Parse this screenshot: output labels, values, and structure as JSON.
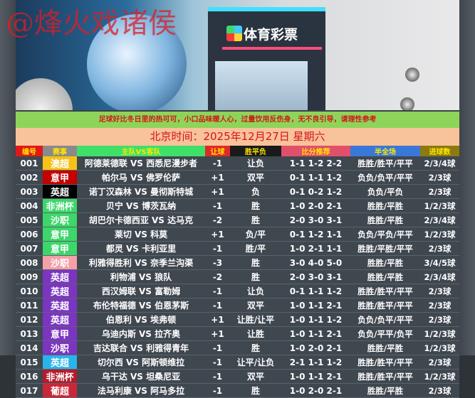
{
  "banner": {
    "watermark": "@烽火戏诸侯",
    "store_sign": "体育彩票"
  },
  "notice": "足球好比冬日里的热可可，小口品味暖人心，过量饮用反伤身，无不良引导，请理性参考",
  "date": "北京时间：2025年12月27日  星期六",
  "headers": [
    {
      "label": "编号",
      "bg": "#e01818"
    },
    {
      "label": "赛事",
      "bg": "#8a8a8a"
    },
    {
      "label": "主队VS客队",
      "bg": "#3fe06a"
    },
    {
      "label": "让球",
      "bg": "#e02828"
    },
    {
      "label": "胜平负",
      "bg": "#1a1a1a"
    },
    {
      "label": "比分推荐",
      "bg": "#e0506a"
    },
    {
      "label": "半全场",
      "bg": "#3a78d8"
    },
    {
      "label": "进球数",
      "bg": "#8a7a10"
    }
  ],
  "rows": [
    {
      "id": "001",
      "league": "澳超",
      "league_color": "#f5c21a",
      "match": "阿德莱德联 VS 西悉尼漫步者",
      "handicap": "-1",
      "result": "让负",
      "scores": "1-1 1-2 2-2",
      "halffull": "胜胜/胜平/平平",
      "goals": "2/3/4球"
    },
    {
      "id": "002",
      "league": "意甲",
      "league_color": "#c40000",
      "match": "帕尔马 VS 佛罗伦萨",
      "handicap": "+1",
      "result": "双平",
      "scores": "0-1 1-1 1-2",
      "halffull": "负负/负平/平平",
      "goals": "2/3球"
    },
    {
      "id": "003",
      "league": "英超",
      "league_color": "#000000",
      "match": "诺丁汉森林 VS 曼彻斯特城",
      "handicap": "+1",
      "result": "负",
      "scores": "0-1 0-2 1-2",
      "halffull": "负负/平负",
      "goals": "2/3球"
    },
    {
      "id": "004",
      "league": "非洲杯",
      "league_color": "#3dd66a",
      "match": "贝宁 VS 博茨瓦纳",
      "handicap": "-1",
      "result": "胜",
      "scores": "1-0 2-0 2-1",
      "halffull": "胜胜/平胜",
      "goals": "1/2/3球"
    },
    {
      "id": "005",
      "league": "沙职",
      "league_color": "#3dd66a",
      "match": "胡巴尔卡德西亚 VS 达马克",
      "handicap": "-2",
      "result": "胜",
      "scores": "2-0 3-0 3-1",
      "halffull": "胜胜/平胜",
      "goals": "2/3/4球"
    },
    {
      "id": "006",
      "league": "意甲",
      "league_color": "#3dd66a",
      "match": "莱切 VS 科莫",
      "handicap": "+1",
      "result": "负/平",
      "scores": "0-1 1-2 1-1",
      "halffull": "负负/平负/平平",
      "goals": "1/2/3球"
    },
    {
      "id": "007",
      "league": "意甲",
      "league_color": "#3dd66a",
      "match": "都灵 VS 卡利亚里",
      "handicap": "-1",
      "result": "胜/平",
      "scores": "1-0 2-1 1-1",
      "halffull": "胜胜/平胜/平平",
      "goals": "2/3球"
    },
    {
      "id": "008",
      "league": "沙职",
      "league_color": "#f4a0a8",
      "match": "利雅得胜利 VS 奈季兰沟渠",
      "handicap": "-3",
      "result": "胜",
      "scores": "3-0 4-0 5-0",
      "halffull": "胜胜/平胜",
      "goals": "3/4/5球"
    },
    {
      "id": "009",
      "league": "英超",
      "league_color": "#7b35c0",
      "match": "利物浦 VS 狼队",
      "handicap": "-2",
      "result": "胜",
      "scores": "2-0 3-0 3-1",
      "halffull": "胜胜/平胜",
      "goals": "2/3/4球"
    },
    {
      "id": "010",
      "league": "英超",
      "league_color": "#7b35c0",
      "match": "西汉姆联 VS 富勒姆",
      "handicap": "-1",
      "result": "让负",
      "scores": "0-1 1-1 1-2",
      "halffull": "胜胜/胜平/平平",
      "goals": "2/3球"
    },
    {
      "id": "011",
      "league": "英超",
      "league_color": "#7b35c0",
      "match": "布伦特福德 VS 伯恩茅斯",
      "handicap": "-1",
      "result": "双平",
      "scores": "1-0 1-1 2-1",
      "halffull": "胜胜/胜平/平平",
      "goals": "2/3球"
    },
    {
      "id": "012",
      "league": "英超",
      "league_color": "#7b35c0",
      "match": "伯恩利 VS 埃弗顿",
      "handicap": "+1",
      "result": "让胜/让平",
      "scores": "1-0 1-1 1-2",
      "halffull": "负负/负平/平平",
      "goals": "2/3球"
    },
    {
      "id": "013",
      "league": "意甲",
      "league_color": "#7b35c0",
      "match": "乌迪内斯 VS 拉齐奥",
      "handicap": "+1",
      "result": "让胜",
      "scores": "1-0 1-1 2-1",
      "halffull": "负负/平平/负平",
      "goals": "1/2/3球"
    },
    {
      "id": "014",
      "league": "沙职",
      "league_color": "#7b35c0",
      "match": "吉达联合 VS 利雅得青年",
      "handicap": "-1",
      "result": "胜",
      "scores": "1-0 2-0 2-1",
      "halffull": "胜胜/平胜",
      "goals": "1/2/3球"
    },
    {
      "id": "015",
      "league": "英超",
      "league_color": "#29b4ea",
      "match": "切尔西 VS 阿斯顿维拉",
      "handicap": "-1",
      "result": "让平/让负",
      "scores": "2-1 1-1 1-2",
      "halffull": "胜胜/胜平/平平",
      "goals": "2/3球"
    },
    {
      "id": "016",
      "league": "非洲杯",
      "league_color": "#b31c2c",
      "match": "乌干达 VS 坦桑尼亚",
      "handicap": "-1",
      "result": "双平",
      "scores": "1-0 1-1 2-1",
      "halffull": "胜胜/胜平/平平",
      "goals": "1/2/3球"
    },
    {
      "id": "017",
      "league": "葡超",
      "league_color": "#c8283a",
      "match": "法马利康 VS 阿马多拉",
      "handicap": "-1",
      "result": "胜",
      "scores": "1-0 2-0 2-1",
      "halffull": "胜胜/平胜",
      "goals": "2/3球"
    }
  ]
}
